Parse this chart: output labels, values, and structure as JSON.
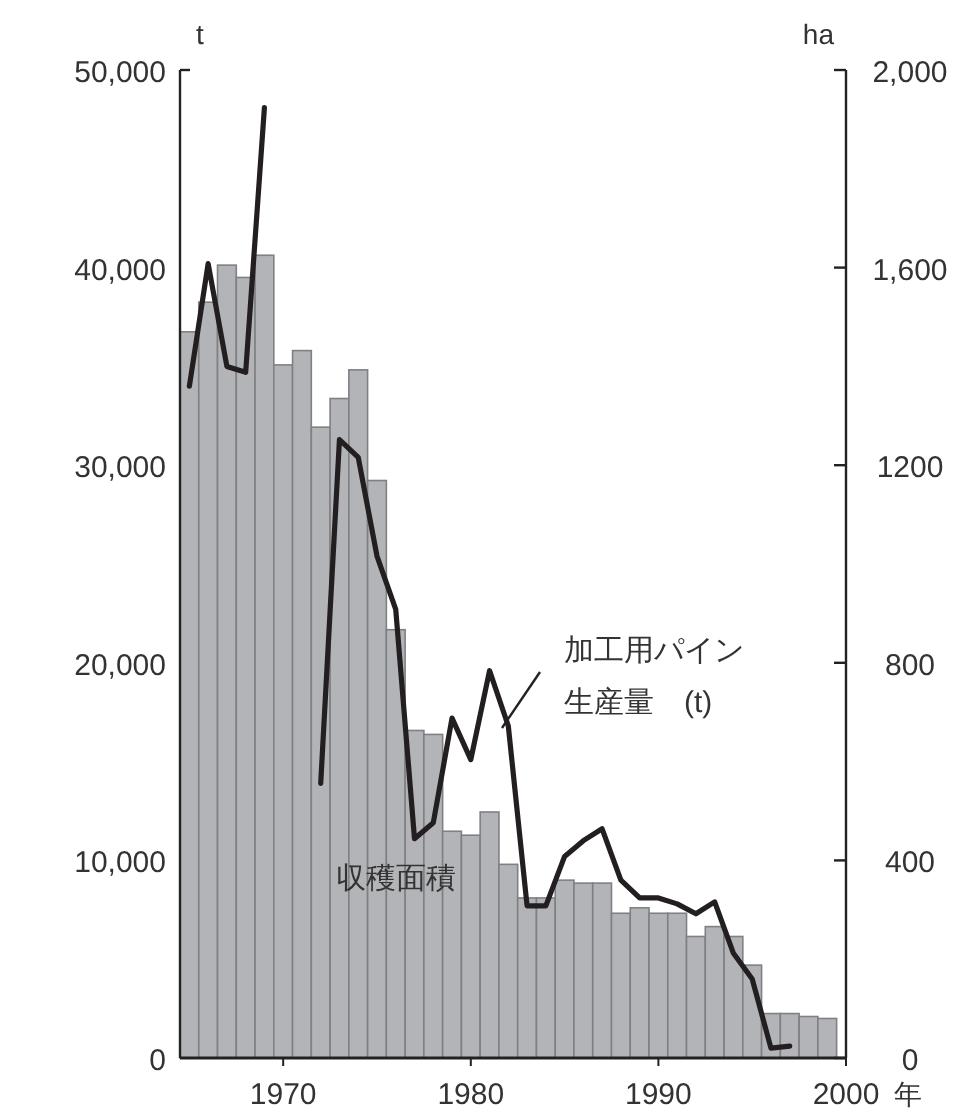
{
  "chart_data": {
    "type": "bar",
    "x": [
      1965,
      1966,
      1967,
      1968,
      1969,
      1970,
      1971,
      1972,
      1973,
      1974,
      1975,
      1976,
      1977,
      1978,
      1979,
      1980,
      1981,
      1982,
      1983,
      1984,
      1985,
      1986,
      1987,
      1988,
      1989,
      1990,
      1991,
      1992,
      1993,
      1994,
      1995,
      1996,
      1997,
      1998,
      1999
    ],
    "series": [
      {
        "axis": "y2",
        "name": "収穫面積",
        "color": "#b3b4b8",
        "values": [
          1470,
          1530,
          1605,
          1580,
          1625,
          1403,
          1432,
          1277,
          1335,
          1393,
          1169,
          867,
          663,
          655,
          459,
          451,
          498,
          392,
          324,
          324,
          360,
          354,
          354,
          293,
          304,
          293,
          293,
          246,
          266,
          246,
          188,
          90,
          90,
          84,
          80
        ]
      },
      {
        "type": "line",
        "name": "加工用パイン生産量　(t)",
        "color": "#231f20",
        "values": [
          34000,
          40200,
          35000,
          34700,
          48100,
          null,
          null,
          13900,
          31300,
          30400,
          25400,
          22700,
          11100,
          11900,
          17200,
          15100,
          19600,
          16800,
          7700,
          7700,
          10200,
          11000,
          11600,
          9000,
          8100,
          8100,
          7800,
          7300,
          7900,
          5300,
          4000,
          500,
          600,
          null,
          null
        ]
      }
    ],
    "xlim": [
      1964.5,
      2000
    ],
    "xticks": [
      1970,
      1980,
      1990,
      2000
    ],
    "xlabel": "年",
    "ylabel": "t",
    "y2label": "ha",
    "ylim": [
      0,
      50000
    ],
    "yticks": [
      0,
      {
        "value": 10000,
        "label": "10,000"
      },
      {
        "value": 20000,
        "label": "20,000"
      },
      {
        "value": 30000,
        "label": "30,000"
      },
      {
        "value": 40000,
        "label": "40,000"
      },
      {
        "value": 50000,
        "label": "50,000"
      }
    ],
    "y2lim": [
      0,
      2000
    ],
    "y2ticks": [
      0,
      400,
      800,
      1200,
      {
        "value": 1600,
        "label": "1,600"
      },
      {
        "value": 2000,
        "label": "2,000"
      }
    ]
  }
}
